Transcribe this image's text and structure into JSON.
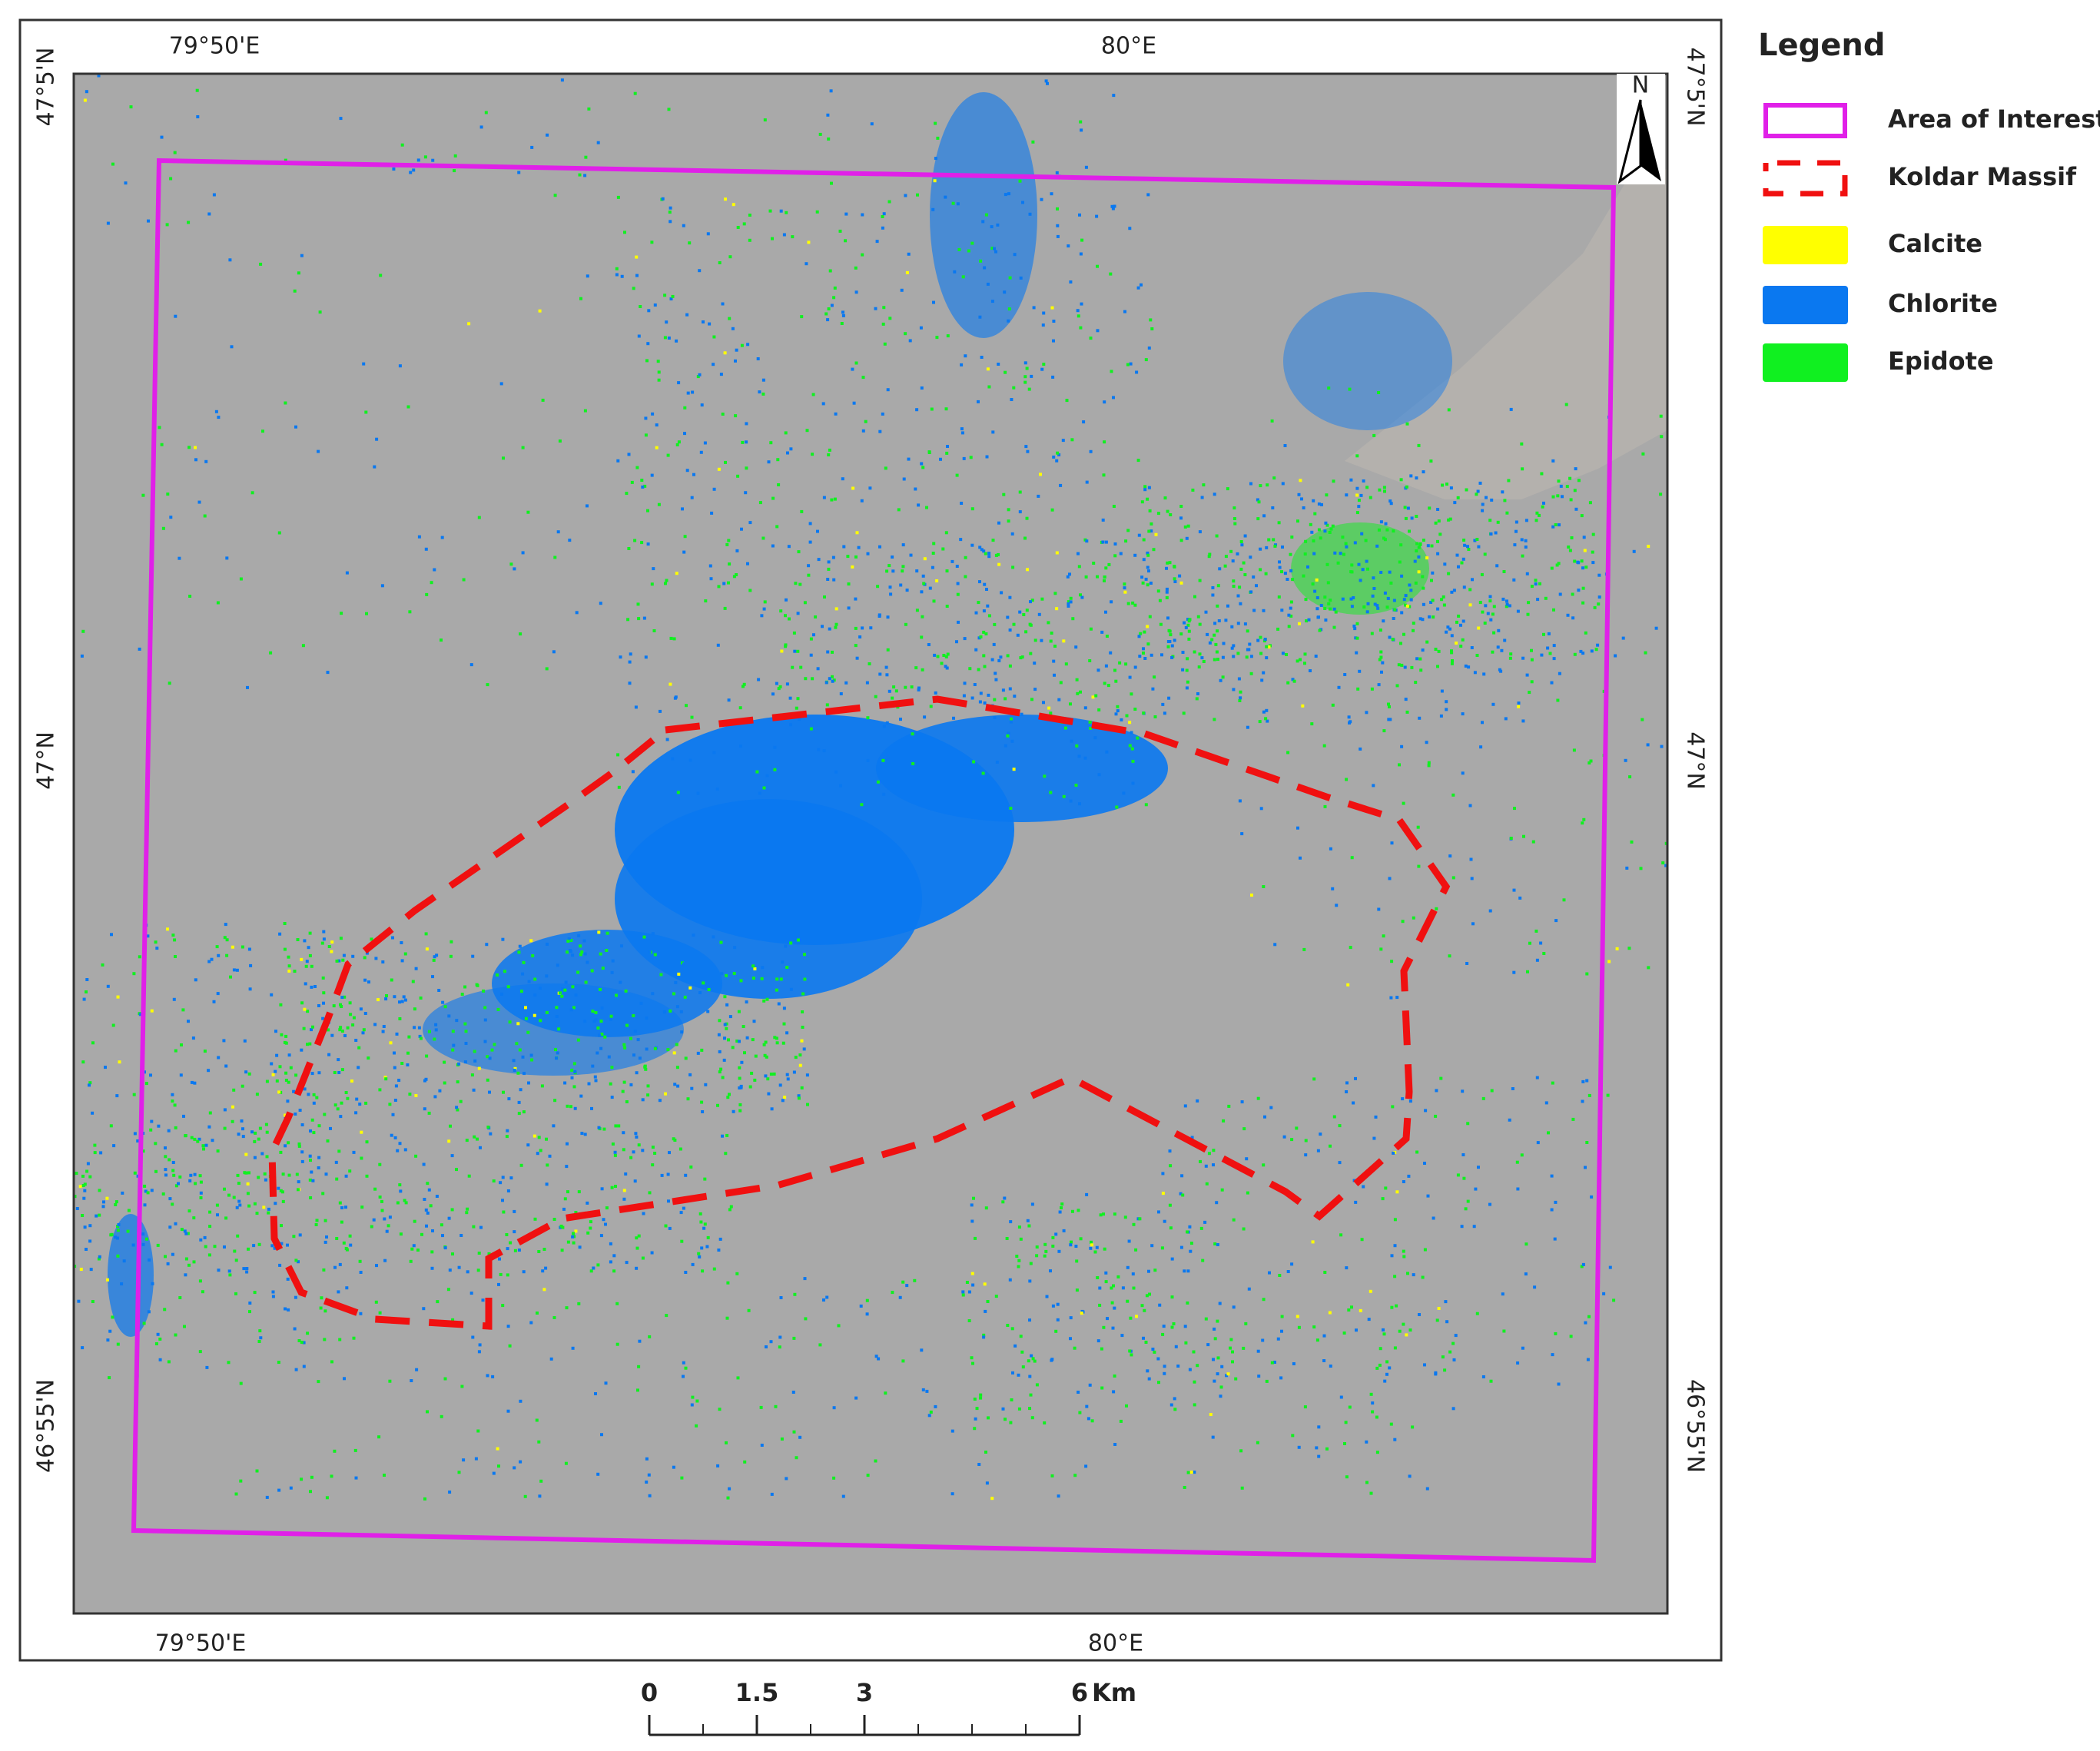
{
  "map": {
    "coordinates": {
      "top": [
        "79°50'E",
        "80°E"
      ],
      "bottom": [
        "79°50'E",
        "80°E"
      ],
      "left": [
        "47°5'N",
        "47°N",
        "46°55'N"
      ],
      "right": [
        "47°5'N",
        "47°N",
        "46°55'N"
      ]
    },
    "north": "N",
    "legend": {
      "title": "Legend",
      "items": [
        {
          "label": "Area of Interest",
          "color": "#e020e8"
        },
        {
          "label": "Koldar Massif",
          "color": "#f01010"
        },
        {
          "label": "Calcite",
          "color": "#ffff00"
        },
        {
          "label": "Chlorite",
          "color": "#0a78f0"
        },
        {
          "label": "Epidote",
          "color": "#10f020"
        }
      ]
    },
    "scale_bar": {
      "ticks": [
        0,
        1.5,
        3,
        6
      ],
      "unit": "Km"
    }
  }
}
